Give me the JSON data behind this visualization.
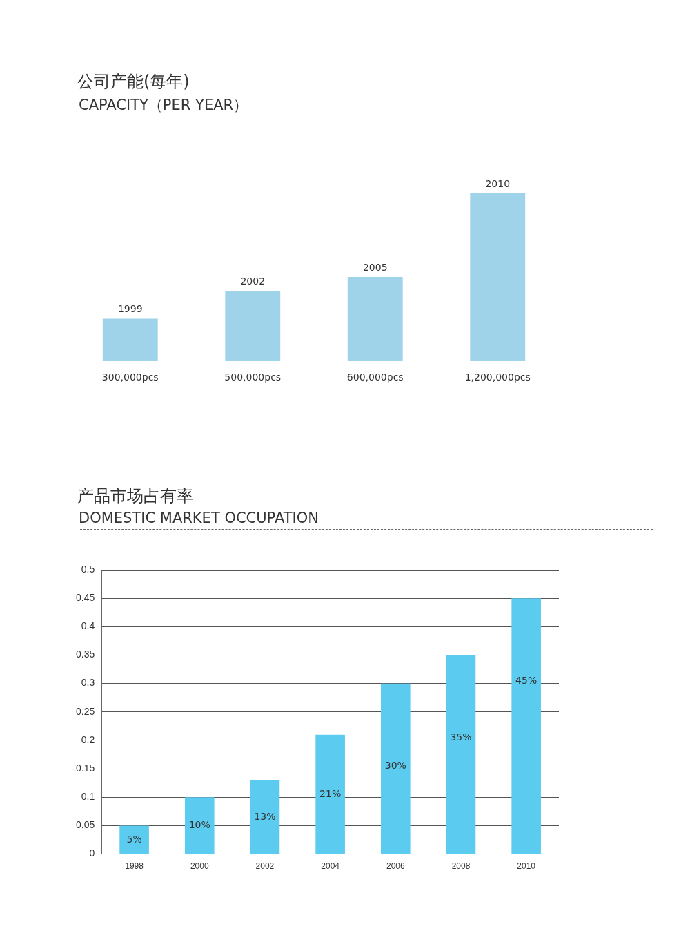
{
  "chart_data": [
    {
      "type": "bar",
      "title": "公司产能(每年)",
      "subtitle": "CAPACITY（PER YEAR）",
      "categories": [
        "1999",
        "2002",
        "2005",
        "2010"
      ],
      "values": [
        300000,
        500000,
        600000,
        1200000
      ],
      "value_labels": [
        "300,000pcs",
        "500,000pcs",
        "600,000pcs",
        "1,200,000pcs"
      ],
      "color": "#9fd3ea",
      "tick_labels": false
    },
    {
      "type": "bar",
      "title": "产品市场占有率",
      "subtitle": "DOMESTIC MARKET OCCUPATION",
      "categories": [
        "1998",
        "2000",
        "2002",
        "2004",
        "2006",
        "2008",
        "2010"
      ],
      "values": [
        0.05,
        0.1,
        0.13,
        0.21,
        0.3,
        0.35,
        0.45
      ],
      "value_labels": [
        "5%",
        "10%",
        "13%",
        "21%",
        "30%",
        "35%",
        "45%"
      ],
      "color": "#5ccbf0",
      "ylim": [
        0,
        0.5
      ],
      "yticks": [
        0,
        0.05,
        0.1,
        0.15,
        0.2,
        0.25,
        0.3,
        0.35,
        0.4,
        0.45,
        0.5
      ],
      "grid": "y"
    }
  ]
}
